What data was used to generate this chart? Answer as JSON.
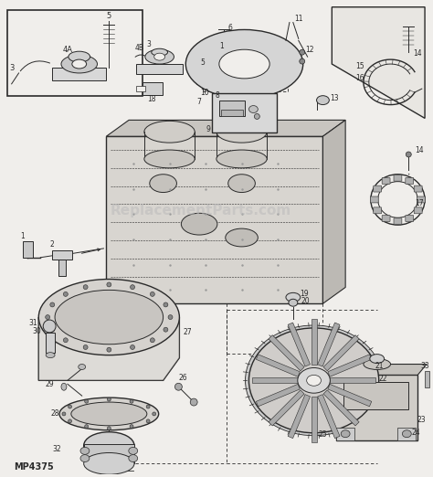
{
  "fig_width": 4.74,
  "fig_height": 5.22,
  "dpi": 100,
  "bg_color": "#f0eeeb",
  "line_color": "#2a2a2a",
  "watermark_text": "ReplacementParts.com",
  "watermark_color": "#bbbbbb",
  "watermark_alpha": 0.55,
  "bottom_label": "MP4375",
  "lw": 0.7,
  "lw_thick": 1.0
}
